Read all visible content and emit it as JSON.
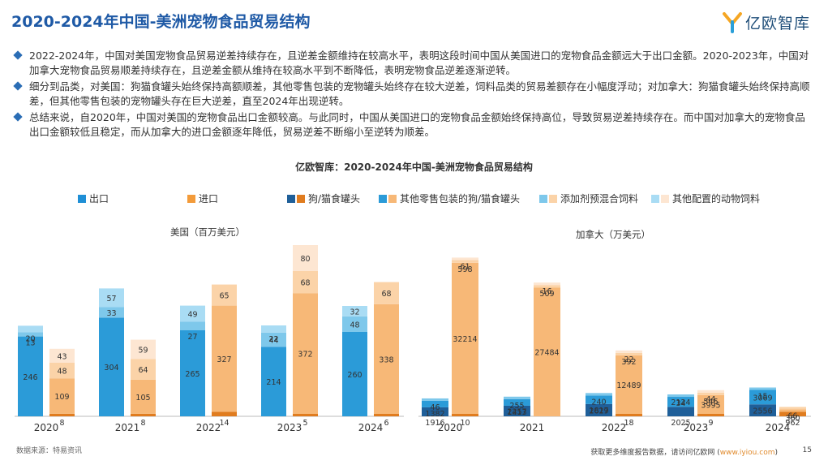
{
  "title": "2020-2024年中国-美洲宠物食品贸易结构",
  "brand": {
    "name": "亿欧智库",
    "icon": "yiou-logo-icon",
    "colors": [
      "#f5a623",
      "#2a9fd8"
    ]
  },
  "bullets": [
    "2022-2024年，中国对美国宠物食品贸易逆差持续存在，且逆差金额维持在较高水平，表明这段时间中国从美国进口的宠物食品金额远大于出口金额。2020-2023年，中国对加拿大宠物食品贸易顺差持续存在，且逆差金额从维持在较高水平到不断降低，表明宠物食品逆差逐渐逆转。",
    "细分到品类，对美国：狗猫食罐头始终保持高额顺差，其他零售包装的宠物罐头始终存在较大逆差，饲料品类的贸易差额存在小幅度浮动；对加拿大：狗猫食罐头始终保持高顺差，但其他零售包装的宠物罐头存在巨大逆差，直至2024年出现逆转。",
    "总结来说，自2020年，中国对美国的宠物食品出口金额较高。与此同时，中国从美国进口的宠物食品金额始终保持高位，导致贸易逆差持续存在。而中国对加拿大的宠物食品出口金额较低且稳定，而从加拿大的进口金额逐年降低，贸易逆差不断缩小至逆转为顺差。"
  ],
  "footer": {
    "source": "数据来源：特易资讯",
    "prefix": "获取更多维度报告数据，请访问亿欧网 (",
    "link": "www.iyiou.com",
    "suffix": ")",
    "page": "15"
  },
  "chart_data": {
    "type": "bar",
    "title": "亿欧智库：2020-2024年中国-美洲宠物食品贸易结构",
    "legend": {
      "labels": [
        "出口",
        "进口",
        "狗/猫食罐头",
        "其他零售包装的狗/猫食罐头",
        "添加剂预混合饲料",
        "其他配置的动物饲料"
      ],
      "colors": {
        "export": [
          "#1f8fd6",
          "#1f5f99",
          "#2b9bd8",
          "#7ec8eb",
          "#a9dcf4"
        ],
        "import": [
          "#f39b3a",
          "#e07c1f",
          "#f7b877",
          "#fbd3a8",
          "#fde6d2"
        ]
      }
    },
    "charts": [
      {
        "name": "美国（百万美元）",
        "categories": [
          "2020",
          "2021",
          "2022",
          "2023",
          "2024"
        ],
        "series": [
          {
            "name": "狗/猫食罐头",
            "export": [
              0,
              0,
              0,
              0,
              0
            ],
            "import": [
              8,
              8,
              14,
              5,
              6
            ]
          },
          {
            "name": "其他零售包装的狗/猫食罐头",
            "export": [
              246,
              304,
              265,
              214,
              260
            ],
            "import": [
              109,
              105,
              327,
              372,
              338
            ]
          },
          {
            "name": "添加剂预混合饲料",
            "export": [
              13,
              33,
              27,
              44,
              48
            ],
            "import": [
              48,
              64,
              65,
              68,
              68
            ]
          },
          {
            "name": "其他配置的动物饲料",
            "export": [
              20,
              57,
              49,
              22,
              32
            ],
            "import": [
              43,
              59,
              0,
              80,
              0
            ]
          }
        ]
      },
      {
        "name": "加拿大（万美元）",
        "categories": [
          "2020",
          "2021",
          "2022",
          "2023",
          "2024"
        ],
        "series": [
          {
            "name": "狗/猫食罐头",
            "export": [
              1916,
              2257,
              2629,
              2025,
              2556
            ],
            "import": [
              10,
              0,
              18,
              9,
              962
            ]
          },
          {
            "name": "其他零售包装的狗/猫食罐头",
            "export": [
              1382,
              1413,
              1817,
              2124,
              3069
            ],
            "import": [
              32214,
              27484,
              12489,
              3995,
              360
            ]
          },
          {
            "name": "添加剂预混合饲料",
            "export": [
              46,
              255,
              240,
              34,
              15
            ],
            "import": [
              598,
              509,
              392,
              546,
              66
            ]
          },
          {
            "name": "其他配置的动物饲料",
            "export": [
              0,
              0,
              0,
              0,
              0
            ],
            "import": [
              61,
              16,
              22,
              44,
              0
            ]
          }
        ]
      }
    ]
  }
}
